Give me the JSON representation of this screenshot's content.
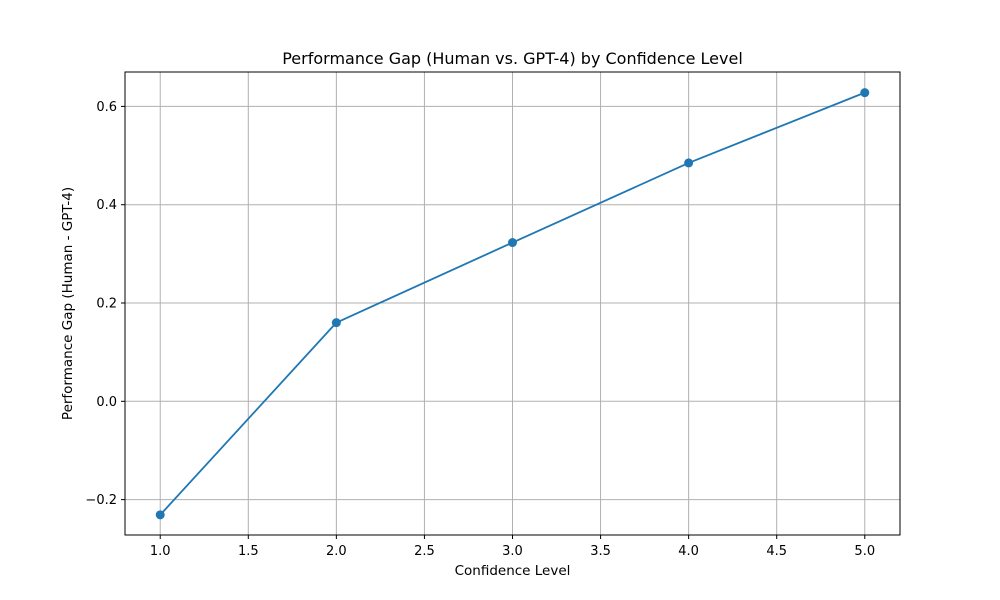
{
  "chart_data": {
    "type": "line",
    "title": "Performance Gap (Human vs. GPT-4) by Confidence Level",
    "xlabel": "Confidence Level",
    "ylabel": "Performance Gap (Human - GPT-4)",
    "x": [
      1.0,
      2.0,
      3.0,
      4.0,
      5.0
    ],
    "series": [
      {
        "values": [
          -0.231,
          0.16,
          0.323,
          0.485,
          0.628
        ],
        "color": "#1f77b4",
        "marker": "circle"
      }
    ],
    "xlim": [
      0.8,
      5.2
    ],
    "ylim": [
      -0.272,
      0.67
    ],
    "xticks": [
      1.0,
      1.5,
      2.0,
      2.5,
      3.0,
      3.5,
      4.0,
      4.5,
      5.0
    ],
    "xtick_labels": [
      "1.0",
      "1.5",
      "2.0",
      "2.5",
      "3.0",
      "3.5",
      "4.0",
      "4.5",
      "5.0"
    ],
    "yticks": [
      -0.2,
      0.0,
      0.2,
      0.4,
      0.6
    ],
    "ytick_labels": [
      "−0.2",
      "0.0",
      "0.2",
      "0.4",
      "0.6"
    ],
    "grid": true,
    "grid_color": "#b0b0b0",
    "axis_color": "#000000"
  }
}
